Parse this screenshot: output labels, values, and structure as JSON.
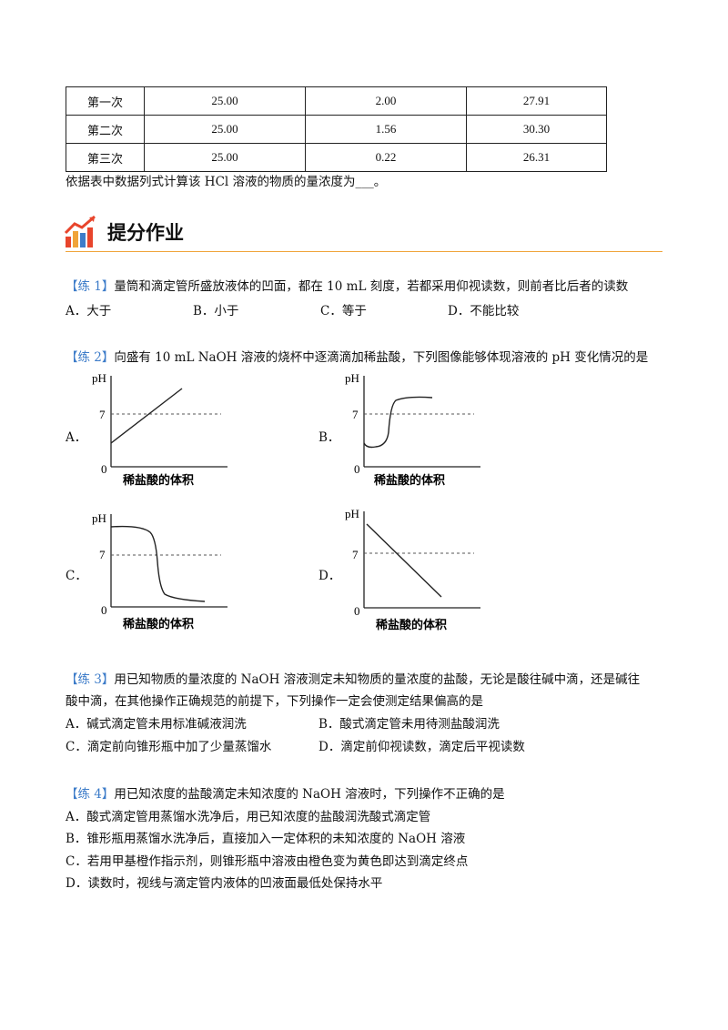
{
  "table": {
    "rows": [
      {
        "trial": "第一次",
        "c1": "25.00",
        "c2": "2.00",
        "c3": "27.91"
      },
      {
        "trial": "第二次",
        "c1": "25.00",
        "c2": "1.56",
        "c3": "30.30"
      },
      {
        "trial": "第三次",
        "c1": "25.00",
        "c2": "0.22",
        "c3": "26.31"
      }
    ],
    "after_text": "依据表中数据列式计算该 HCl 溶液的物质的量浓度为___。"
  },
  "section": {
    "title": "提分作业",
    "accent": "#f0a43a",
    "tag_color": "#3d7cc9"
  },
  "q1": {
    "tag": "【练 1】",
    "stem": "量筒和滴定管所盛放液体的凹面，都在 10 mL 刻度，若都采用仰视读数，则前者比后者的读数",
    "options": [
      "A．大于",
      "B．小于",
      "C．等于",
      "D．不能比较"
    ]
  },
  "q2": {
    "tag": "【练 2】",
    "stem": "向盛有 10 mL NaOH 溶液的烧杯中逐滴滴加稀盐酸，下列图像能够体现溶液的 pH 变化情况的是",
    "graphs": [
      {
        "letter": "A．",
        "y_label": "pH",
        "ref": "7",
        "origin": "0",
        "x_label": "稀盐酸的体积"
      },
      {
        "letter": "B．",
        "y_label": "pH",
        "ref": "7",
        "origin": "0",
        "x_label": "稀盐酸的体积"
      },
      {
        "letter": "C．",
        "y_label": "pH",
        "ref": "7",
        "origin": "0",
        "x_label": "稀盐酸的体积"
      },
      {
        "letter": "D．",
        "y_label": "pH",
        "ref": "7",
        "origin": "0",
        "x_label": "稀盐酸的体积"
      }
    ]
  },
  "q3": {
    "tag": "【练 3】",
    "stem1": "用已知物质的量浓度的 NaOH 溶液测定未知物质的量浓度的盐酸，无论是酸往碱中滴，还是碱往",
    "stem2": "酸中滴，在其他操作正确规范的前提下，下列操作一定会使测定结果偏高的是",
    "options": [
      "A．碱式滴定管未用标准碱液润洗",
      "B．酸式滴定管未用待测盐酸润洗",
      "C．滴定前向锥形瓶中加了少量蒸馏水",
      "D．滴定前仰视读数，滴定后平视读数"
    ]
  },
  "q4": {
    "tag": "【练 4】",
    "stem": "用已知浓度的盐酸滴定未知浓度的 NaOH 溶液时，下列操作不正确的是",
    "options": [
      "A．酸式滴定管用蒸馏水洗净后，用已知浓度的盐酸润洗酸式滴定管",
      "B．锥形瓶用蒸馏水洗净后，直接加入一定体积的未知浓度的 NaOH 溶液",
      "C．若用甲基橙作指示剂，则锥形瓶中溶液由橙色变为黄色即达到滴定终点",
      "D．读数时，视线与滴定管内液体的凹液面最低处保持水平"
    ]
  }
}
